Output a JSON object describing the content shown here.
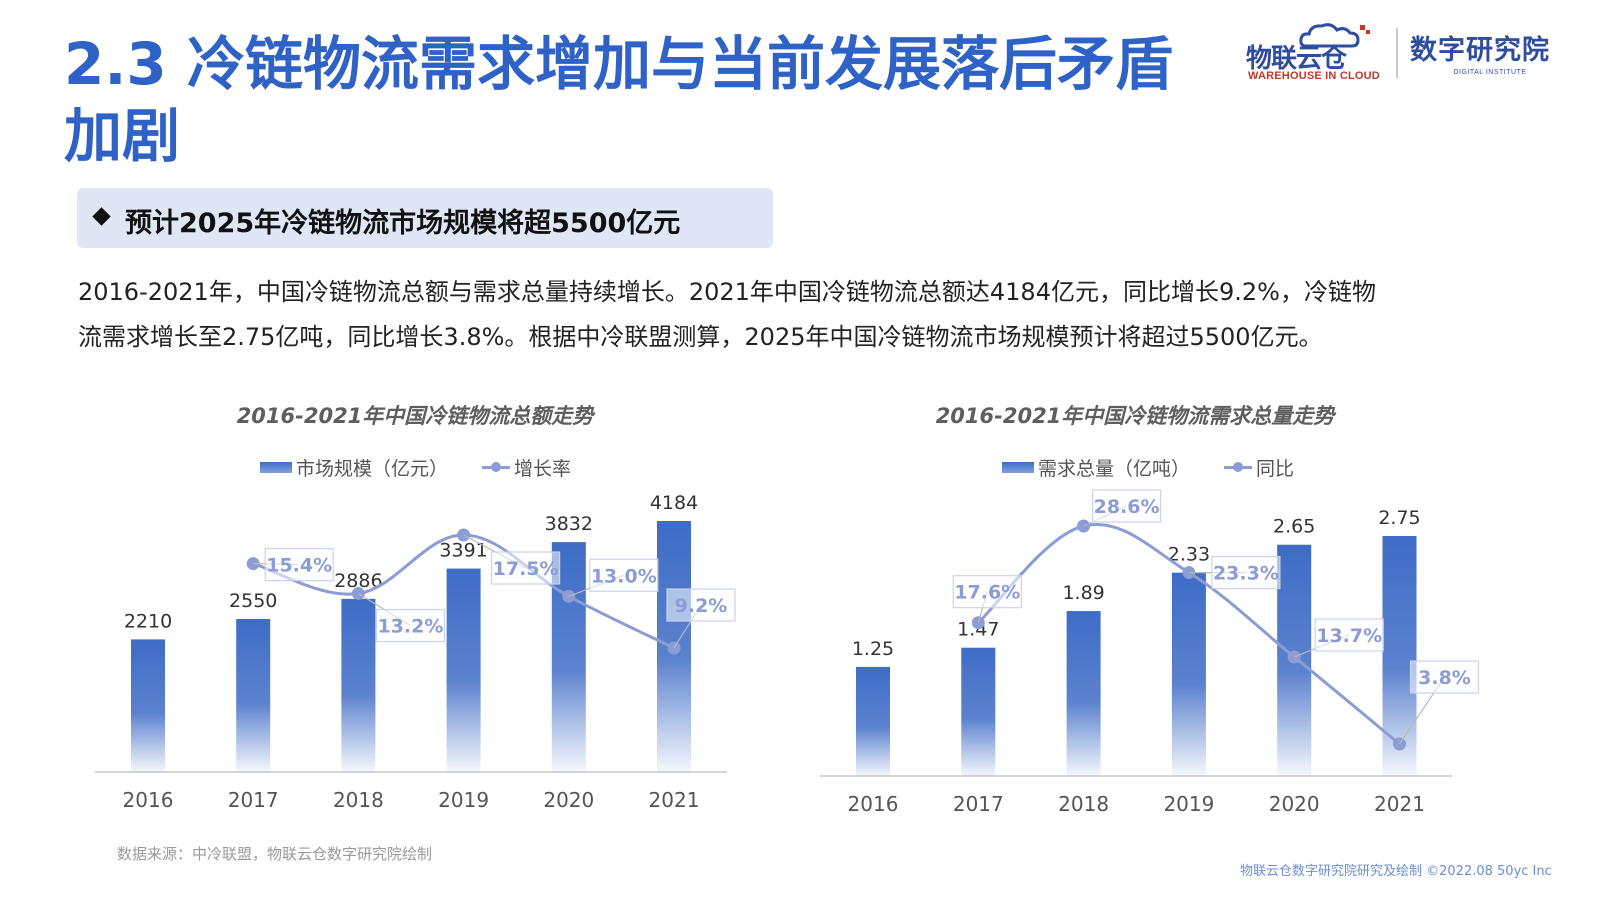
{
  "title": "2.3 冷链物流需求增加与当前发展落后矛盾加剧",
  "logos": {
    "brand1_name": "物联云仓",
    "brand1_sub": "WAREHOUSE IN CLOUD",
    "brand2_name": "数字研究院",
    "brand2_sub": "DIGITAL INSTITUTE"
  },
  "banner": {
    "text": "预计2025年冷链物流市场规模将超5500亿元"
  },
  "paragraph": {
    "line1": "2016-2021年，中国冷链物流总额与需求总量持续增长。2021年中国冷链物流总额达4184亿元，同比增长9.2%，冷链物",
    "line2": "流需求增长至2.75亿吨，同比增长3.8%。根据中冷联盟测算，2025年中国冷链物流市场规模预计将超过5500亿元。"
  },
  "chart_data": [
    {
      "type": "bar",
      "title": "2016-2021年中国冷链物流总额走势",
      "categories": [
        "2016",
        "2017",
        "2018",
        "2019",
        "2020",
        "2021"
      ],
      "series": [
        {
          "name": "市场规模（亿元）",
          "type": "bar",
          "values": [
            2210,
            2550,
            2886,
            3391,
            3832,
            4184
          ],
          "labels": [
            "2210",
            "2550",
            "2886",
            "3391",
            "3832",
            "4184"
          ]
        },
        {
          "name": "增长率",
          "type": "line",
          "values": [
            null,
            15.4,
            13.2,
            17.5,
            13.0,
            9.2
          ],
          "labels": [
            "",
            "15.4%",
            "13.2%",
            "17.5%",
            "13.0%",
            "9.2%"
          ]
        }
      ],
      "grid": false,
      "legend": "top-center",
      "colors": {
        "bar": "#3E6CC6",
        "line": "#8C9CD5",
        "label_text": "#8C9CD5"
      }
    },
    {
      "type": "bar",
      "title": "2016-2021年中国冷链物流需求总量走势",
      "categories": [
        "2016",
        "2017",
        "2018",
        "2019",
        "2020",
        "2021"
      ],
      "series": [
        {
          "name": "需求总量（亿吨）",
          "type": "bar",
          "values": [
            1.25,
            1.47,
            1.89,
            2.33,
            2.65,
            2.75
          ],
          "labels": [
            "1.25",
            "1.47",
            "1.89",
            "2.33",
            "2.65",
            "2.75"
          ]
        },
        {
          "name": "同比",
          "type": "line",
          "values": [
            null,
            17.6,
            28.6,
            23.3,
            13.7,
            3.8
          ],
          "labels": [
            "",
            "17.6%",
            "28.6%",
            "23.3%",
            "13.7%",
            "3.8%"
          ]
        }
      ],
      "grid": false,
      "legend": "top-center",
      "colors": {
        "bar": "#3E6CC6",
        "line": "#8C9CD5",
        "label_text": "#8C9CD5"
      }
    }
  ],
  "source": "数据来源：中冷联盟，物联云仓数字研究院绘制",
  "footer": "物联云仓数字研究院研究及绘制    ©2022.08 50yc Inc"
}
